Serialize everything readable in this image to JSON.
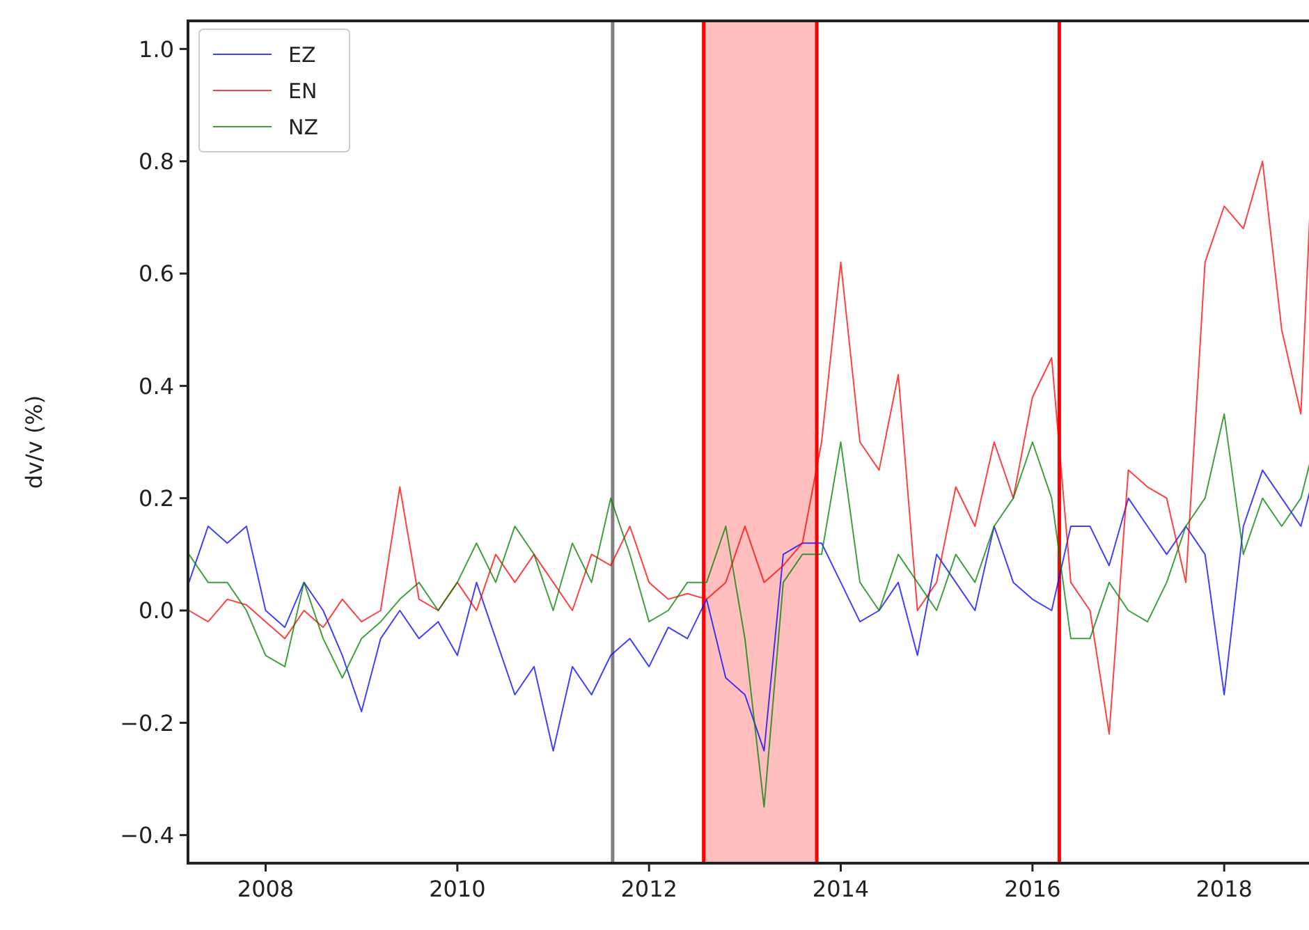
{
  "chart_data": {
    "type": "line",
    "ylabel": "dv/v (%)",
    "x": [
      2007.2,
      2007.4,
      2007.6,
      2007.8,
      2008.0,
      2008.2,
      2008.4,
      2008.6,
      2008.8,
      2009.0,
      2009.2,
      2009.4,
      2009.6,
      2009.8,
      2010.0,
      2010.2,
      2010.4,
      2010.6,
      2010.8,
      2011.0,
      2011.2,
      2011.4,
      2011.6,
      2011.8,
      2012.0,
      2012.2,
      2012.4,
      2012.6,
      2012.8,
      2013.0,
      2013.2,
      2013.4,
      2013.6,
      2013.8,
      2014.0,
      2014.2,
      2014.4,
      2014.6,
      2014.8,
      2015.0,
      2015.2,
      2015.4,
      2015.6,
      2015.8,
      2016.0,
      2016.2,
      2016.4,
      2016.6,
      2016.8,
      2017.0,
      2017.2,
      2017.4,
      2017.6,
      2017.8,
      2018.0,
      2018.2,
      2018.4,
      2018.6,
      2018.8,
      2018.95
    ],
    "series": [
      {
        "name": "EZ",
        "color": "#0000ff",
        "values": [
          0.05,
          0.15,
          0.12,
          0.15,
          0.0,
          -0.03,
          0.05,
          0.0,
          -0.08,
          -0.18,
          -0.05,
          0.0,
          -0.05,
          -0.02,
          -0.08,
          0.05,
          -0.05,
          -0.15,
          -0.1,
          -0.25,
          -0.1,
          -0.15,
          -0.08,
          -0.05,
          -0.1,
          -0.03,
          -0.05,
          0.02,
          -0.12,
          -0.15,
          -0.25,
          0.1,
          0.12,
          0.12,
          0.05,
          -0.02,
          0.0,
          0.05,
          -0.08,
          0.1,
          0.05,
          0.0,
          0.15,
          0.05,
          0.02,
          0.0,
          0.15,
          0.15,
          0.08,
          0.2,
          0.15,
          0.1,
          0.15,
          0.1,
          -0.15,
          0.15,
          0.25,
          0.2,
          0.15,
          0.25
        ]
      },
      {
        "name": "EN",
        "color": "#ff0000",
        "values": [
          0.0,
          -0.02,
          0.02,
          0.01,
          -0.02,
          -0.05,
          0.0,
          -0.03,
          0.02,
          -0.02,
          0.0,
          0.22,
          0.02,
          0.0,
          0.05,
          0.0,
          0.1,
          0.05,
          0.1,
          0.05,
          0.0,
          0.1,
          0.08,
          0.15,
          0.05,
          0.02,
          0.03,
          0.02,
          0.05,
          0.15,
          0.05,
          0.08,
          0.12,
          0.3,
          0.62,
          0.3,
          0.25,
          0.42,
          0.0,
          0.05,
          0.22,
          0.15,
          0.3,
          0.2,
          0.38,
          0.45,
          0.05,
          0.0,
          -0.22,
          0.25,
          0.22,
          0.2,
          0.05,
          0.62,
          0.72,
          0.68,
          0.8,
          0.5,
          0.35,
          0.92
        ]
      },
      {
        "name": "NZ",
        "color": "#008000",
        "values": [
          0.1,
          0.05,
          0.05,
          0.0,
          -0.08,
          -0.1,
          0.05,
          -0.05,
          -0.12,
          -0.05,
          -0.02,
          0.02,
          0.05,
          0.0,
          0.05,
          0.12,
          0.05,
          0.15,
          0.1,
          0.0,
          0.12,
          0.05,
          0.2,
          0.1,
          -0.02,
          0.0,
          0.05,
          0.05,
          0.15,
          -0.05,
          -0.35,
          0.05,
          0.1,
          0.1,
          0.3,
          0.05,
          0.0,
          0.1,
          0.05,
          0.0,
          0.1,
          0.05,
          0.15,
          0.2,
          0.3,
          0.2,
          -0.05,
          -0.05,
          0.05,
          0.0,
          -0.02,
          0.05,
          0.15,
          0.2,
          0.35,
          0.1,
          0.2,
          0.15,
          0.2,
          0.3
        ]
      }
    ],
    "xlim": [
      2007.19,
      2019.03
    ],
    "xticks": [
      2008,
      2010,
      2012,
      2014,
      2016,
      2018
    ],
    "ylim": [
      -0.45,
      1.05
    ],
    "yticks": [
      {
        "value": -0.4,
        "label": "−0.4"
      },
      {
        "value": -0.2,
        "label": "−0.2"
      },
      {
        "value": 0,
        "label": "0.0"
      },
      {
        "value": 0.2,
        "label": "0.2"
      },
      {
        "value": 0.4,
        "label": "0.4"
      },
      {
        "value": 0.6,
        "label": "0.6"
      },
      {
        "value": 0.8,
        "label": "0.8"
      },
      {
        "value": 1,
        "label": "1.0"
      }
    ],
    "ref_lines": [
      {
        "axis": "x",
        "value": 2011.62,
        "color": "#808080"
      },
      {
        "axis": "x",
        "value": 2012.57,
        "color": "#ff0000"
      },
      {
        "axis": "x",
        "value": 2013.75,
        "color": "#ff0000"
      },
      {
        "axis": "x",
        "value": 2016.28,
        "color": "#ff0000"
      }
    ],
    "bands": [
      {
        "axis": "x",
        "from": 2012.57,
        "to": 2013.75,
        "color": "#ff0000"
      }
    ],
    "legend": "top left",
    "grid": false,
    "line_style": "solid"
  }
}
